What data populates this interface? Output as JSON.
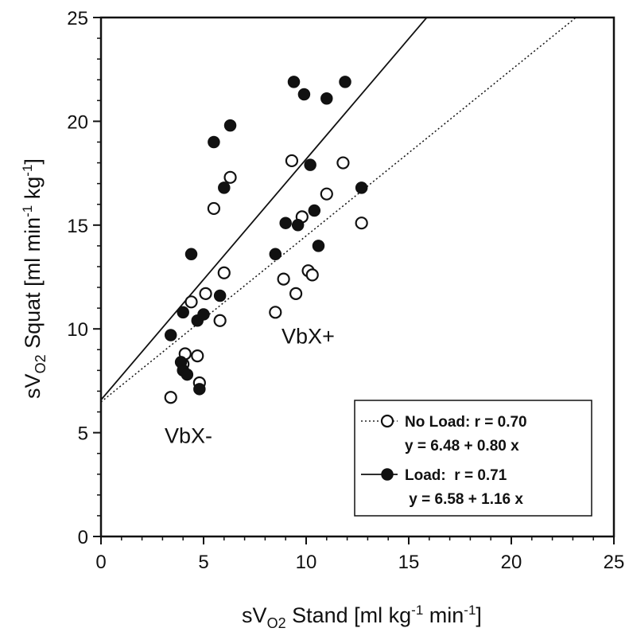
{
  "chart_data": {
    "type": "scatter",
    "xlabel": {
      "base": "sV",
      "sub": "O2",
      "rest": " Stand [ml kg",
      "sup": "-1",
      "rest2": " min",
      "sup2": "-1",
      "end": "]"
    },
    "ylabel": {
      "base": "sV",
      "sub": "O2",
      "rest": " Squat [ml min",
      "sup": "-1",
      "rest2": " kg",
      "sup2": "-1",
      "end": "]"
    },
    "xlim": [
      0,
      25
    ],
    "ylim": [
      0,
      25
    ],
    "xticks": [
      "0",
      "5",
      "10",
      "15",
      "20",
      "25"
    ],
    "yticks": [
      "0",
      "5",
      "10",
      "15",
      "20",
      "25"
    ],
    "grid": false,
    "legend_position": "bottom-right",
    "annotations": [
      {
        "text": "VbX-",
        "x": 3.1,
        "y": 4.5
      },
      {
        "text": "VbX+",
        "x": 8.8,
        "y": 9.3
      }
    ],
    "series": [
      {
        "name": "No Load: r = 0.70",
        "equation": "y = 6.48 + 0.80 x",
        "marker": "open-circle",
        "line_style": "dotted",
        "fit": {
          "intercept": 6.48,
          "slope": 0.8
        },
        "points": [
          [
            3.4,
            6.7
          ],
          [
            4.0,
            8.3
          ],
          [
            4.1,
            8.8
          ],
          [
            4.4,
            11.3
          ],
          [
            4.7,
            8.7
          ],
          [
            4.8,
            7.4
          ],
          [
            5.1,
            11.7
          ],
          [
            5.5,
            15.8
          ],
          [
            5.8,
            10.4
          ],
          [
            6.0,
            12.7
          ],
          [
            6.3,
            17.3
          ],
          [
            8.5,
            10.8
          ],
          [
            8.9,
            12.4
          ],
          [
            9.3,
            18.1
          ],
          [
            9.5,
            11.7
          ],
          [
            9.8,
            15.4
          ],
          [
            10.1,
            12.8
          ],
          [
            10.3,
            12.6
          ],
          [
            11.0,
            16.5
          ],
          [
            11.8,
            18.0
          ],
          [
            12.7,
            15.1
          ]
        ]
      },
      {
        "name": "Load:  r = 0.71",
        "equation": " y = 6.58 + 1.16 x",
        "marker": "filled-circle",
        "line_style": "solid",
        "fit": {
          "intercept": 6.58,
          "slope": 1.16
        },
        "points": [
          [
            3.4,
            9.7
          ],
          [
            3.9,
            8.4
          ],
          [
            4.0,
            10.8
          ],
          [
            4.0,
            8.0
          ],
          [
            4.2,
            7.8
          ],
          [
            4.4,
            13.6
          ],
          [
            4.7,
            10.4
          ],
          [
            4.8,
            7.1
          ],
          [
            5.0,
            10.7
          ],
          [
            5.5,
            19.0
          ],
          [
            5.8,
            11.6
          ],
          [
            6.0,
            16.8
          ],
          [
            6.3,
            19.8
          ],
          [
            8.5,
            13.6
          ],
          [
            9.0,
            15.1
          ],
          [
            9.4,
            21.9
          ],
          [
            9.6,
            15.0
          ],
          [
            9.9,
            21.3
          ],
          [
            10.2,
            17.9
          ],
          [
            10.4,
            15.7
          ],
          [
            10.6,
            14.0
          ],
          [
            11.0,
            21.1
          ],
          [
            11.9,
            21.9
          ],
          [
            12.7,
            16.8
          ]
        ]
      }
    ]
  }
}
